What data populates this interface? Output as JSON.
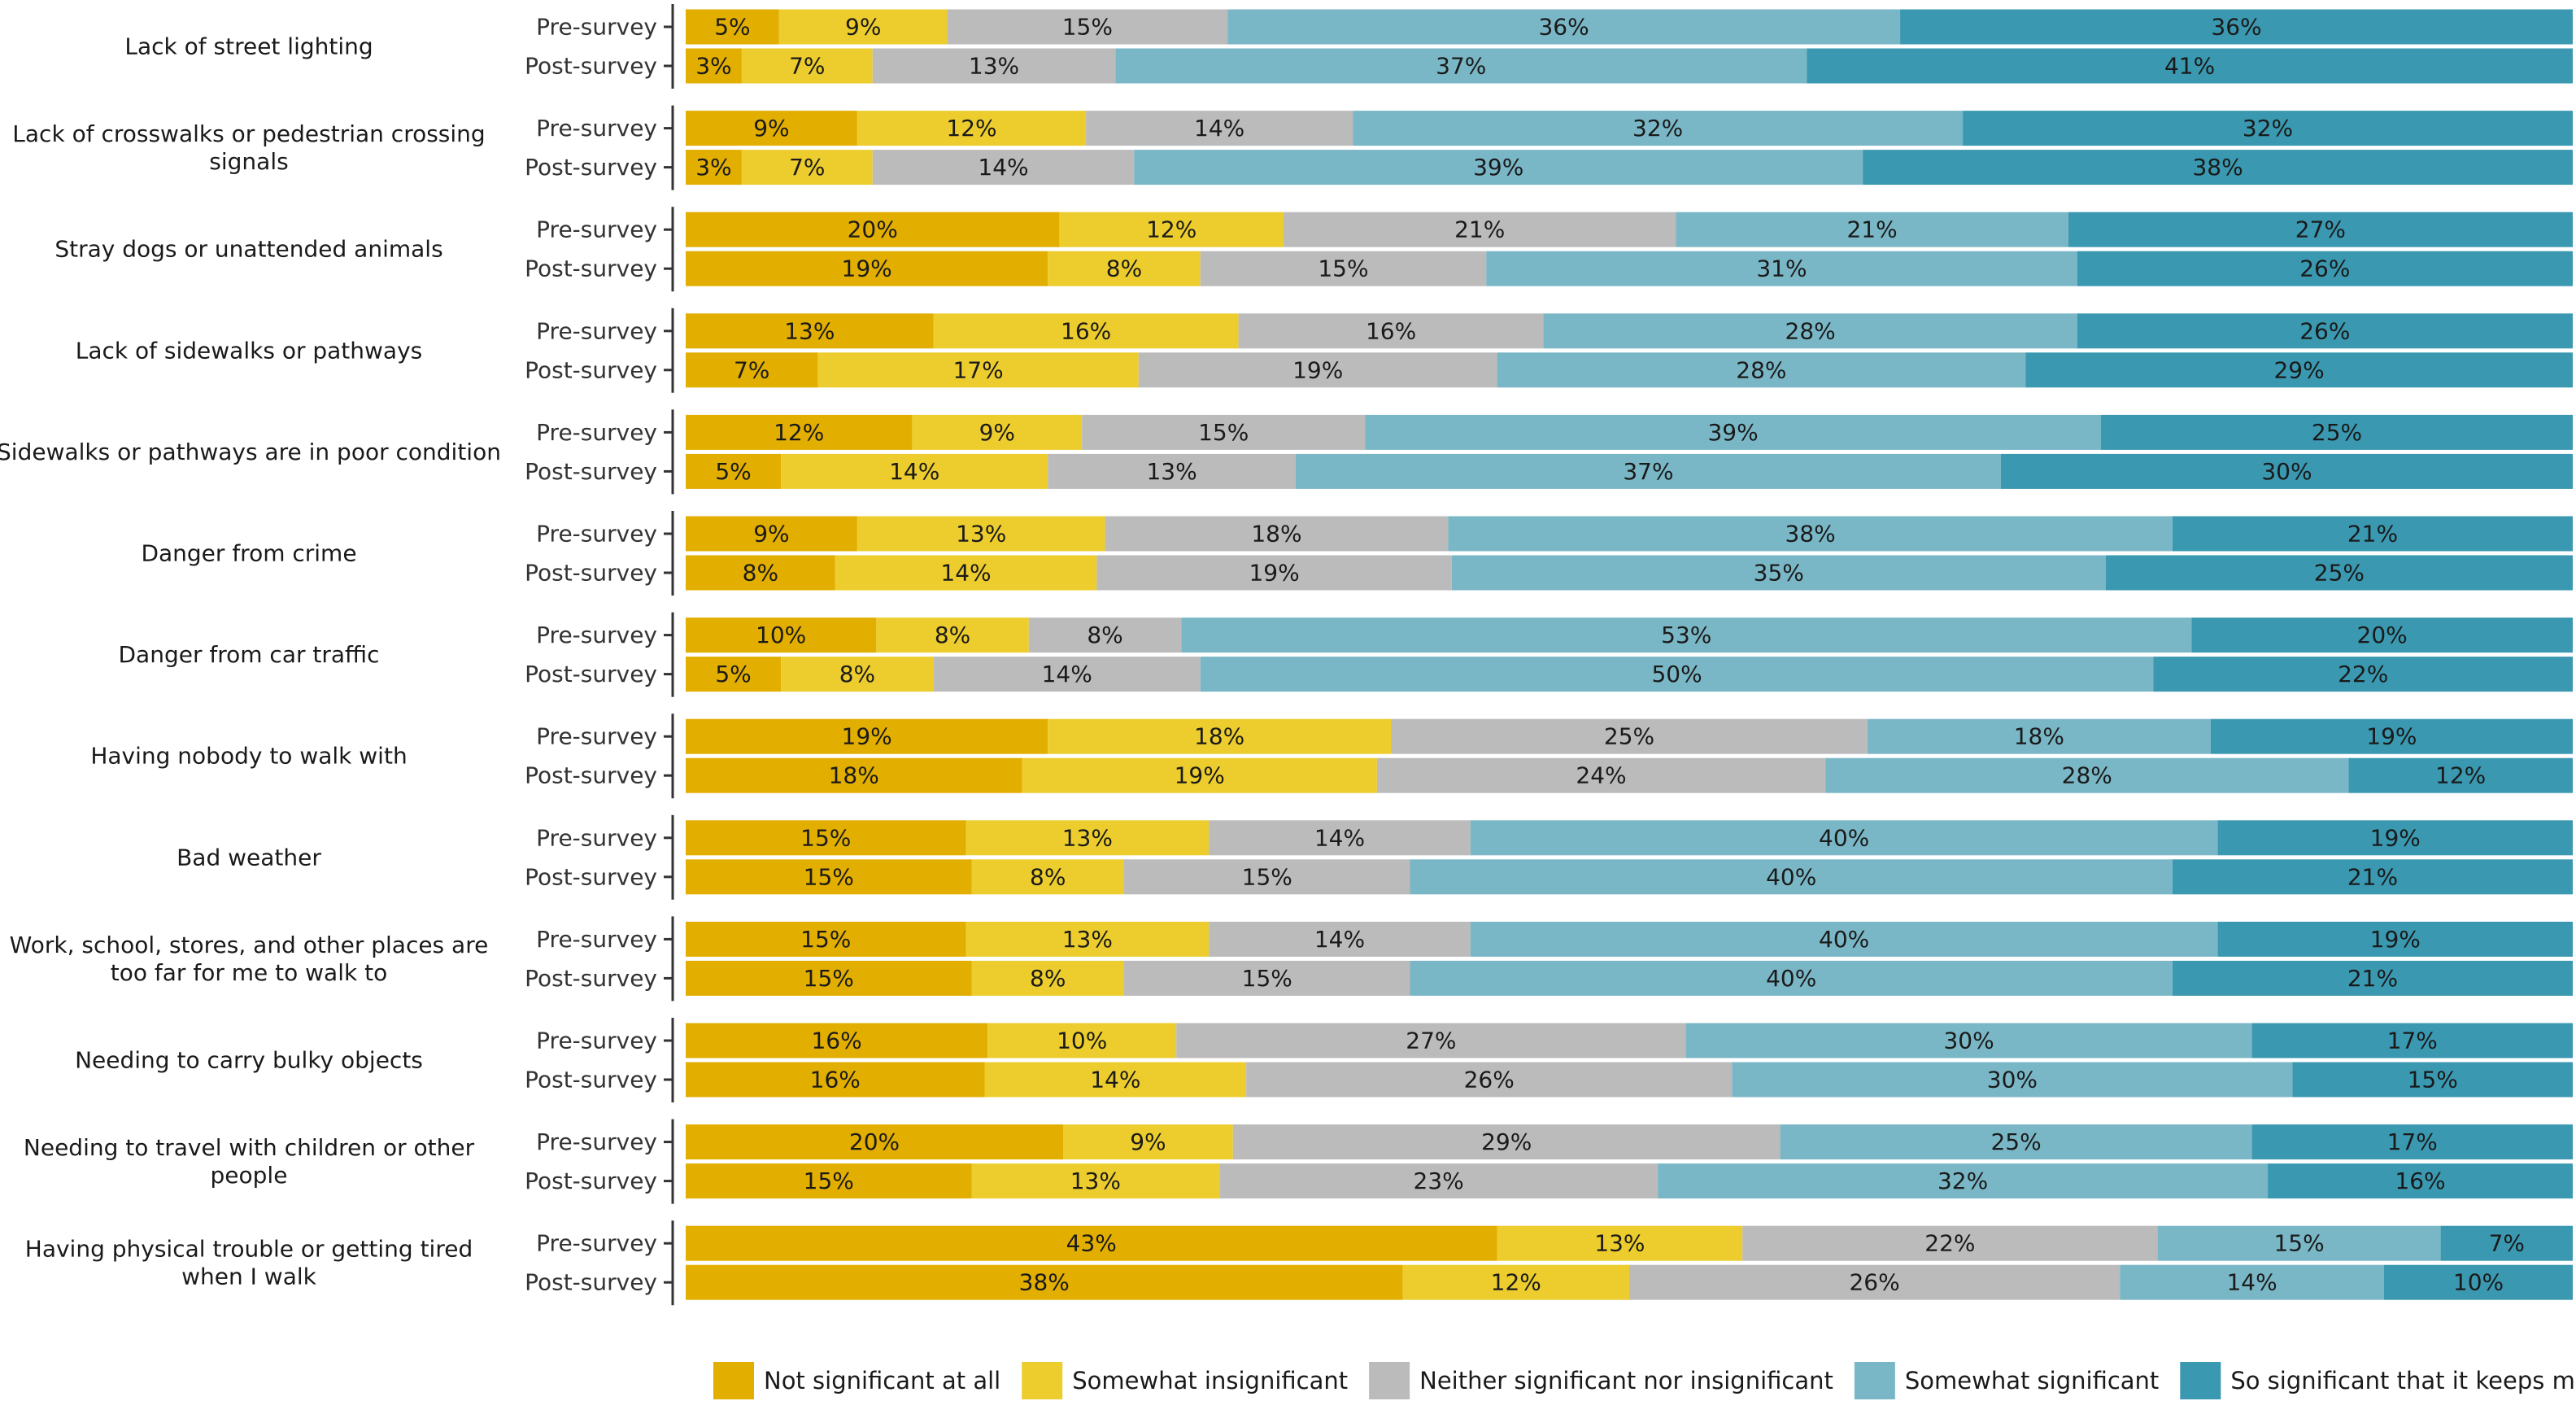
{
  "chart_data": {
    "type": "bar",
    "orientation": "horizontal",
    "stacked": true,
    "percent": true,
    "xlim": [
      0,
      100
    ],
    "grid": false,
    "legend_position": "bottom",
    "row_labels": [
      "Pre-survey",
      "Post-survey"
    ],
    "segments": [
      {
        "name": "Not significant at all",
        "color": "#E2AE00"
      },
      {
        "name": "Somewhat insignificant",
        "color": "#EDCD2D"
      },
      {
        "name": "Neither significant nor insignificant",
        "color": "#BBBBBB"
      },
      {
        "name": "Somewhat significant",
        "color": "#7AB7C6"
      },
      {
        "name": "So significant that it keeps me from walking",
        "color": "#3A98B0"
      }
    ],
    "categories": [
      {
        "label": [
          "Lack of street lighting"
        ],
        "pre": [
          5,
          9,
          15,
          36,
          36
        ],
        "post": [
          3,
          7,
          13,
          37,
          41
        ]
      },
      {
        "label": [
          "Lack of crosswalks or pedestrian crossing",
          "signals"
        ],
        "pre": [
          9,
          12,
          14,
          32,
          32
        ],
        "post": [
          3,
          7,
          14,
          39,
          38
        ]
      },
      {
        "label": [
          "Stray dogs or unattended animals"
        ],
        "pre": [
          20,
          12,
          21,
          21,
          27
        ],
        "post": [
          19,
          8,
          15,
          31,
          26
        ]
      },
      {
        "label": [
          "Lack of sidewalks or pathways"
        ],
        "pre": [
          13,
          16,
          16,
          28,
          26
        ],
        "post": [
          7,
          17,
          19,
          28,
          29
        ]
      },
      {
        "label": [
          "Sidewalks or pathways are in poor condition"
        ],
        "pre": [
          12,
          9,
          15,
          39,
          25
        ],
        "post": [
          5,
          14,
          13,
          37,
          30
        ]
      },
      {
        "label": [
          "Danger from crime"
        ],
        "pre": [
          9,
          13,
          18,
          38,
          21
        ],
        "post": [
          8,
          14,
          19,
          35,
          25
        ]
      },
      {
        "label": [
          "Danger from car traffic"
        ],
        "pre": [
          10,
          8,
          8,
          53,
          20
        ],
        "post": [
          5,
          8,
          14,
          50,
          22
        ]
      },
      {
        "label": [
          "Having nobody to walk with"
        ],
        "pre": [
          19,
          18,
          25,
          18,
          19
        ],
        "post": [
          18,
          19,
          24,
          28,
          12
        ]
      },
      {
        "label": [
          "Bad weather"
        ],
        "pre": [
          15,
          13,
          14,
          40,
          19
        ],
        "post": [
          15,
          8,
          15,
          40,
          21
        ]
      },
      {
        "label": [
          "Work, school, stores, and other places are",
          "too far for me to walk to"
        ],
        "pre": [
          15,
          13,
          14,
          40,
          19
        ],
        "post": [
          15,
          8,
          15,
          40,
          21
        ]
      },
      {
        "label": [
          "Needing to carry bulky objects"
        ],
        "pre": [
          16,
          10,
          27,
          30,
          17
        ],
        "post": [
          16,
          14,
          26,
          30,
          15
        ]
      },
      {
        "label": [
          "Needing to travel with children or other",
          "people"
        ],
        "pre": [
          20,
          9,
          29,
          25,
          17
        ],
        "post": [
          15,
          13,
          23,
          32,
          16
        ]
      },
      {
        "label": [
          "Having physical trouble or getting tired",
          "when I walk"
        ],
        "pre": [
          43,
          13,
          22,
          15,
          7
        ],
        "post": [
          38,
          12,
          26,
          14,
          10
        ]
      }
    ]
  }
}
